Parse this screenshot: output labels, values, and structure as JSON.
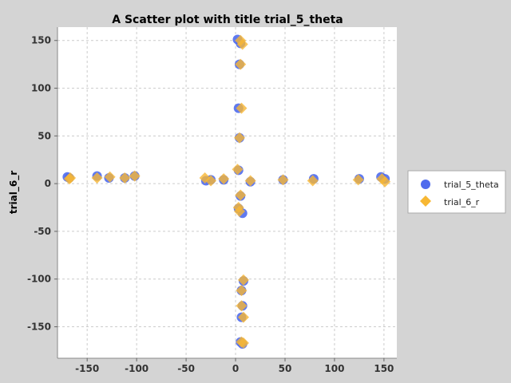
{
  "chart_data": {
    "type": "scatter",
    "title": "A Scatter plot with title trial_5_theta",
    "xlabel": "",
    "ylabel": "trial_6_r",
    "xlim": [
      -180,
      163
    ],
    "ylim": [
      -183,
      164
    ],
    "x_ticks": [
      -150,
      -100,
      -50,
      0,
      50,
      100,
      150
    ],
    "y_ticks": [
      -150,
      -100,
      -50,
      0,
      50,
      100,
      150
    ],
    "grid": true,
    "legend_position": "right",
    "series": [
      {
        "name": "trial_5_theta",
        "color": "#4f6bed",
        "marker": "circle",
        "points": [
          [
            2,
            151
          ],
          [
            5,
            147
          ],
          [
            4,
            125
          ],
          [
            3,
            79
          ],
          [
            4,
            48
          ],
          [
            3,
            14
          ],
          [
            5,
            -13
          ],
          [
            7,
            -31
          ],
          [
            3,
            -26
          ],
          [
            8,
            -102
          ],
          [
            6,
            -112
          ],
          [
            7,
            -128
          ],
          [
            6,
            -140
          ],
          [
            5,
            -166
          ],
          [
            7,
            -168
          ],
          [
            -170,
            7
          ],
          [
            -168,
            6
          ],
          [
            -140,
            8
          ],
          [
            -128,
            6
          ],
          [
            -112,
            6
          ],
          [
            -102,
            8
          ],
          [
            -30,
            3
          ],
          [
            -25,
            4
          ],
          [
            -12,
            4
          ],
          [
            15,
            2
          ],
          [
            48,
            4
          ],
          [
            79,
            5
          ],
          [
            125,
            5
          ],
          [
            147,
            7
          ],
          [
            151,
            5
          ]
        ]
      },
      {
        "name": "trial_6_r",
        "color": "#f7b733",
        "marker": "diamond",
        "points": [
          [
            5,
            150
          ],
          [
            7,
            146
          ],
          [
            5,
            125
          ],
          [
            6,
            79
          ],
          [
            4,
            48
          ],
          [
            2,
            15
          ],
          [
            5,
            -12
          ],
          [
            4,
            -29
          ],
          [
            3,
            -25
          ],
          [
            8,
            -101
          ],
          [
            6,
            -112
          ],
          [
            6,
            -128
          ],
          [
            8,
            -140
          ],
          [
            6,
            -166
          ],
          [
            8,
            -167
          ],
          [
            -168,
            5
          ],
          [
            -167,
            6
          ],
          [
            -140,
            6
          ],
          [
            -127,
            7
          ],
          [
            -112,
            6
          ],
          [
            -102,
            8
          ],
          [
            -31,
            6
          ],
          [
            -25,
            3
          ],
          [
            -12,
            5
          ],
          [
            15,
            3
          ],
          [
            48,
            4
          ],
          [
            78,
            3
          ],
          [
            124,
            4
          ],
          [
            148,
            5
          ],
          [
            151,
            2
          ]
        ]
      }
    ]
  }
}
